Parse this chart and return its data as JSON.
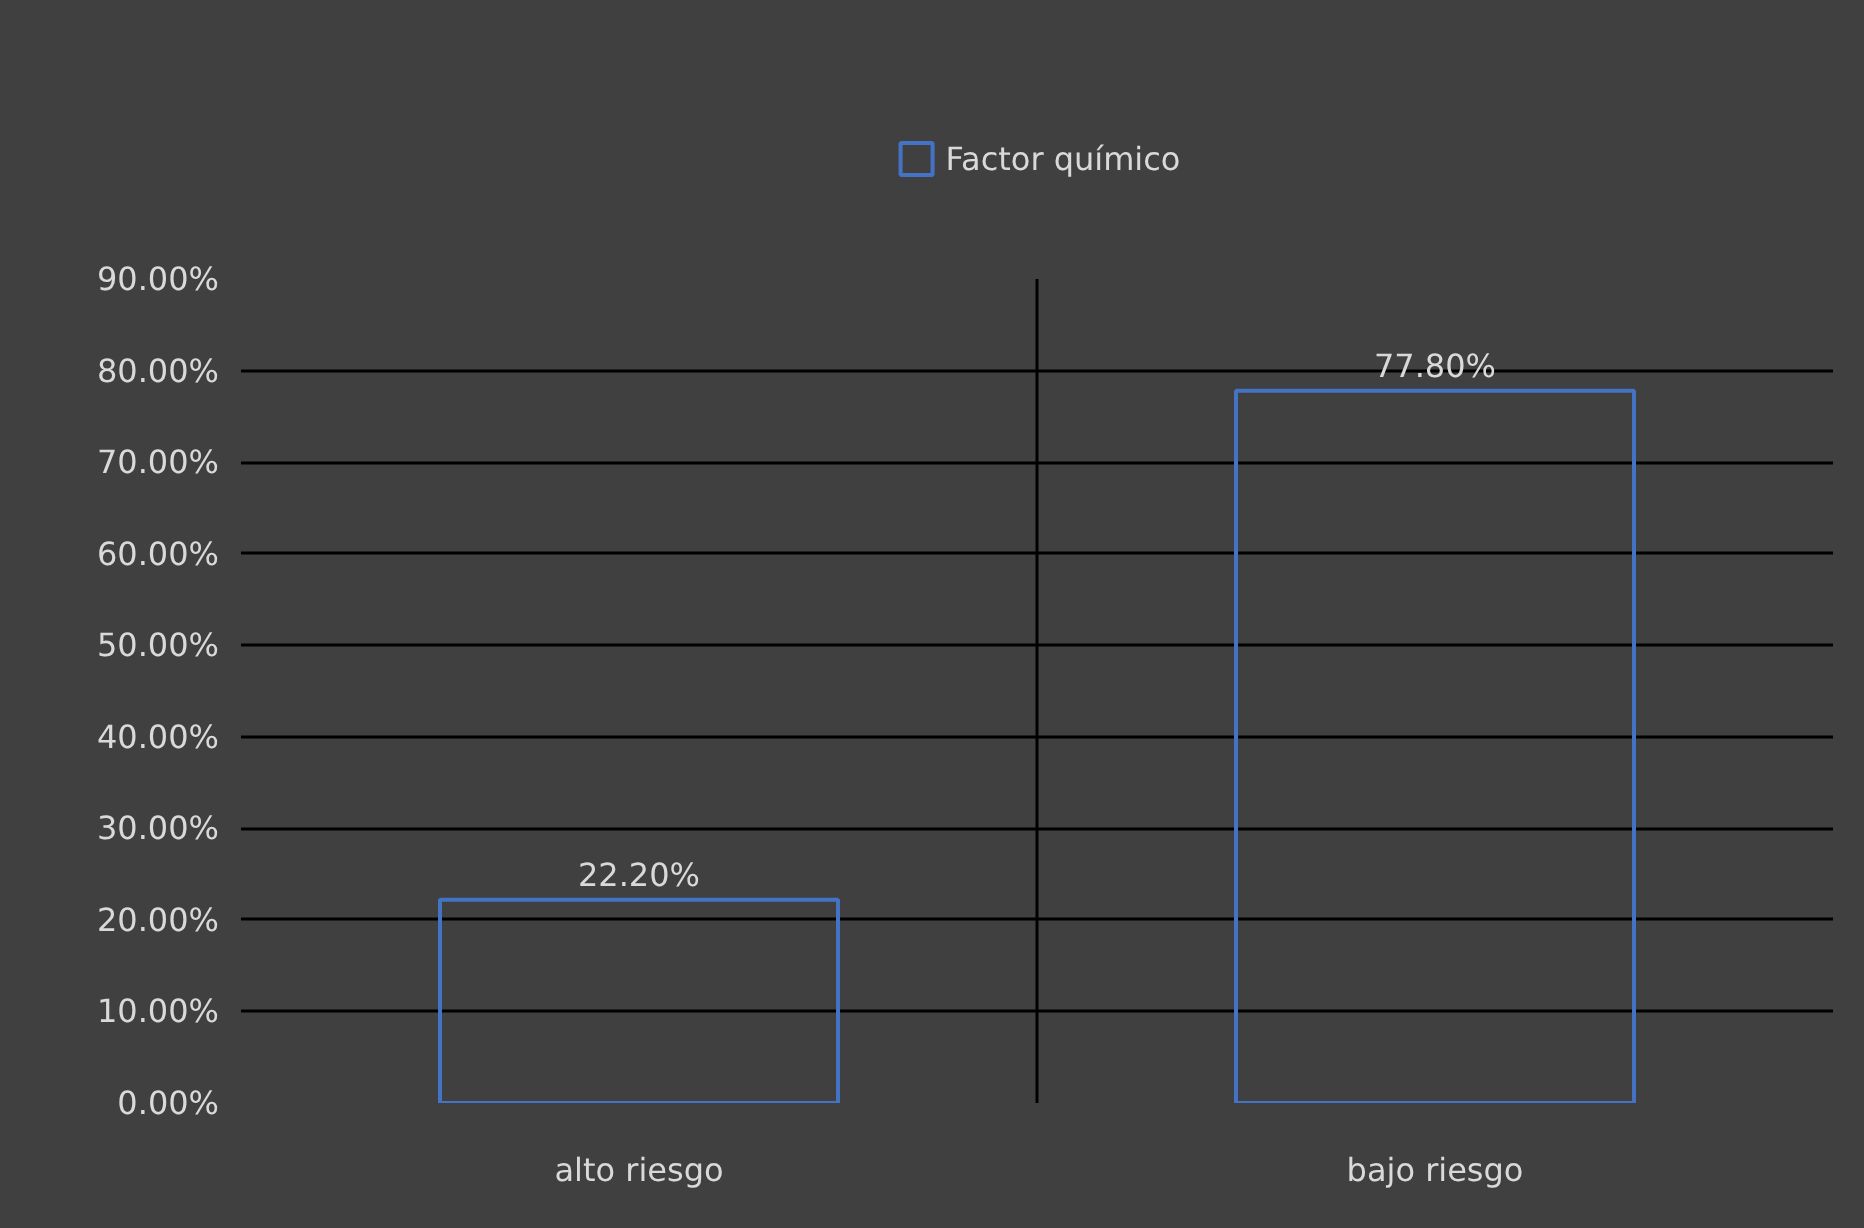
{
  "chart_data": {
    "type": "bar",
    "categories": [
      "alto riesgo",
      "bajo riesgo"
    ],
    "series": [
      {
        "name": "Factor químico",
        "color": "#4472c4",
        "values": [
          22.2,
          77.8
        ],
        "value_labels": [
          "22.20%",
          "77.80%"
        ]
      }
    ],
    "ylim": [
      0,
      90
    ],
    "yticks": [
      {
        "value": 0,
        "label": "0.00%"
      },
      {
        "value": 10,
        "label": "10.00%"
      },
      {
        "value": 20,
        "label": "20.00%"
      },
      {
        "value": 30,
        "label": "30.00%"
      },
      {
        "value": 40,
        "label": "40.00%"
      },
      {
        "value": 50,
        "label": "50.00%"
      },
      {
        "value": 60,
        "label": "60.00%"
      },
      {
        "value": 70,
        "label": "70.00%"
      },
      {
        "value": 80,
        "label": "80.00%"
      },
      {
        "value": 90,
        "label": "90.00%"
      }
    ],
    "grid": true,
    "legend": "top"
  }
}
